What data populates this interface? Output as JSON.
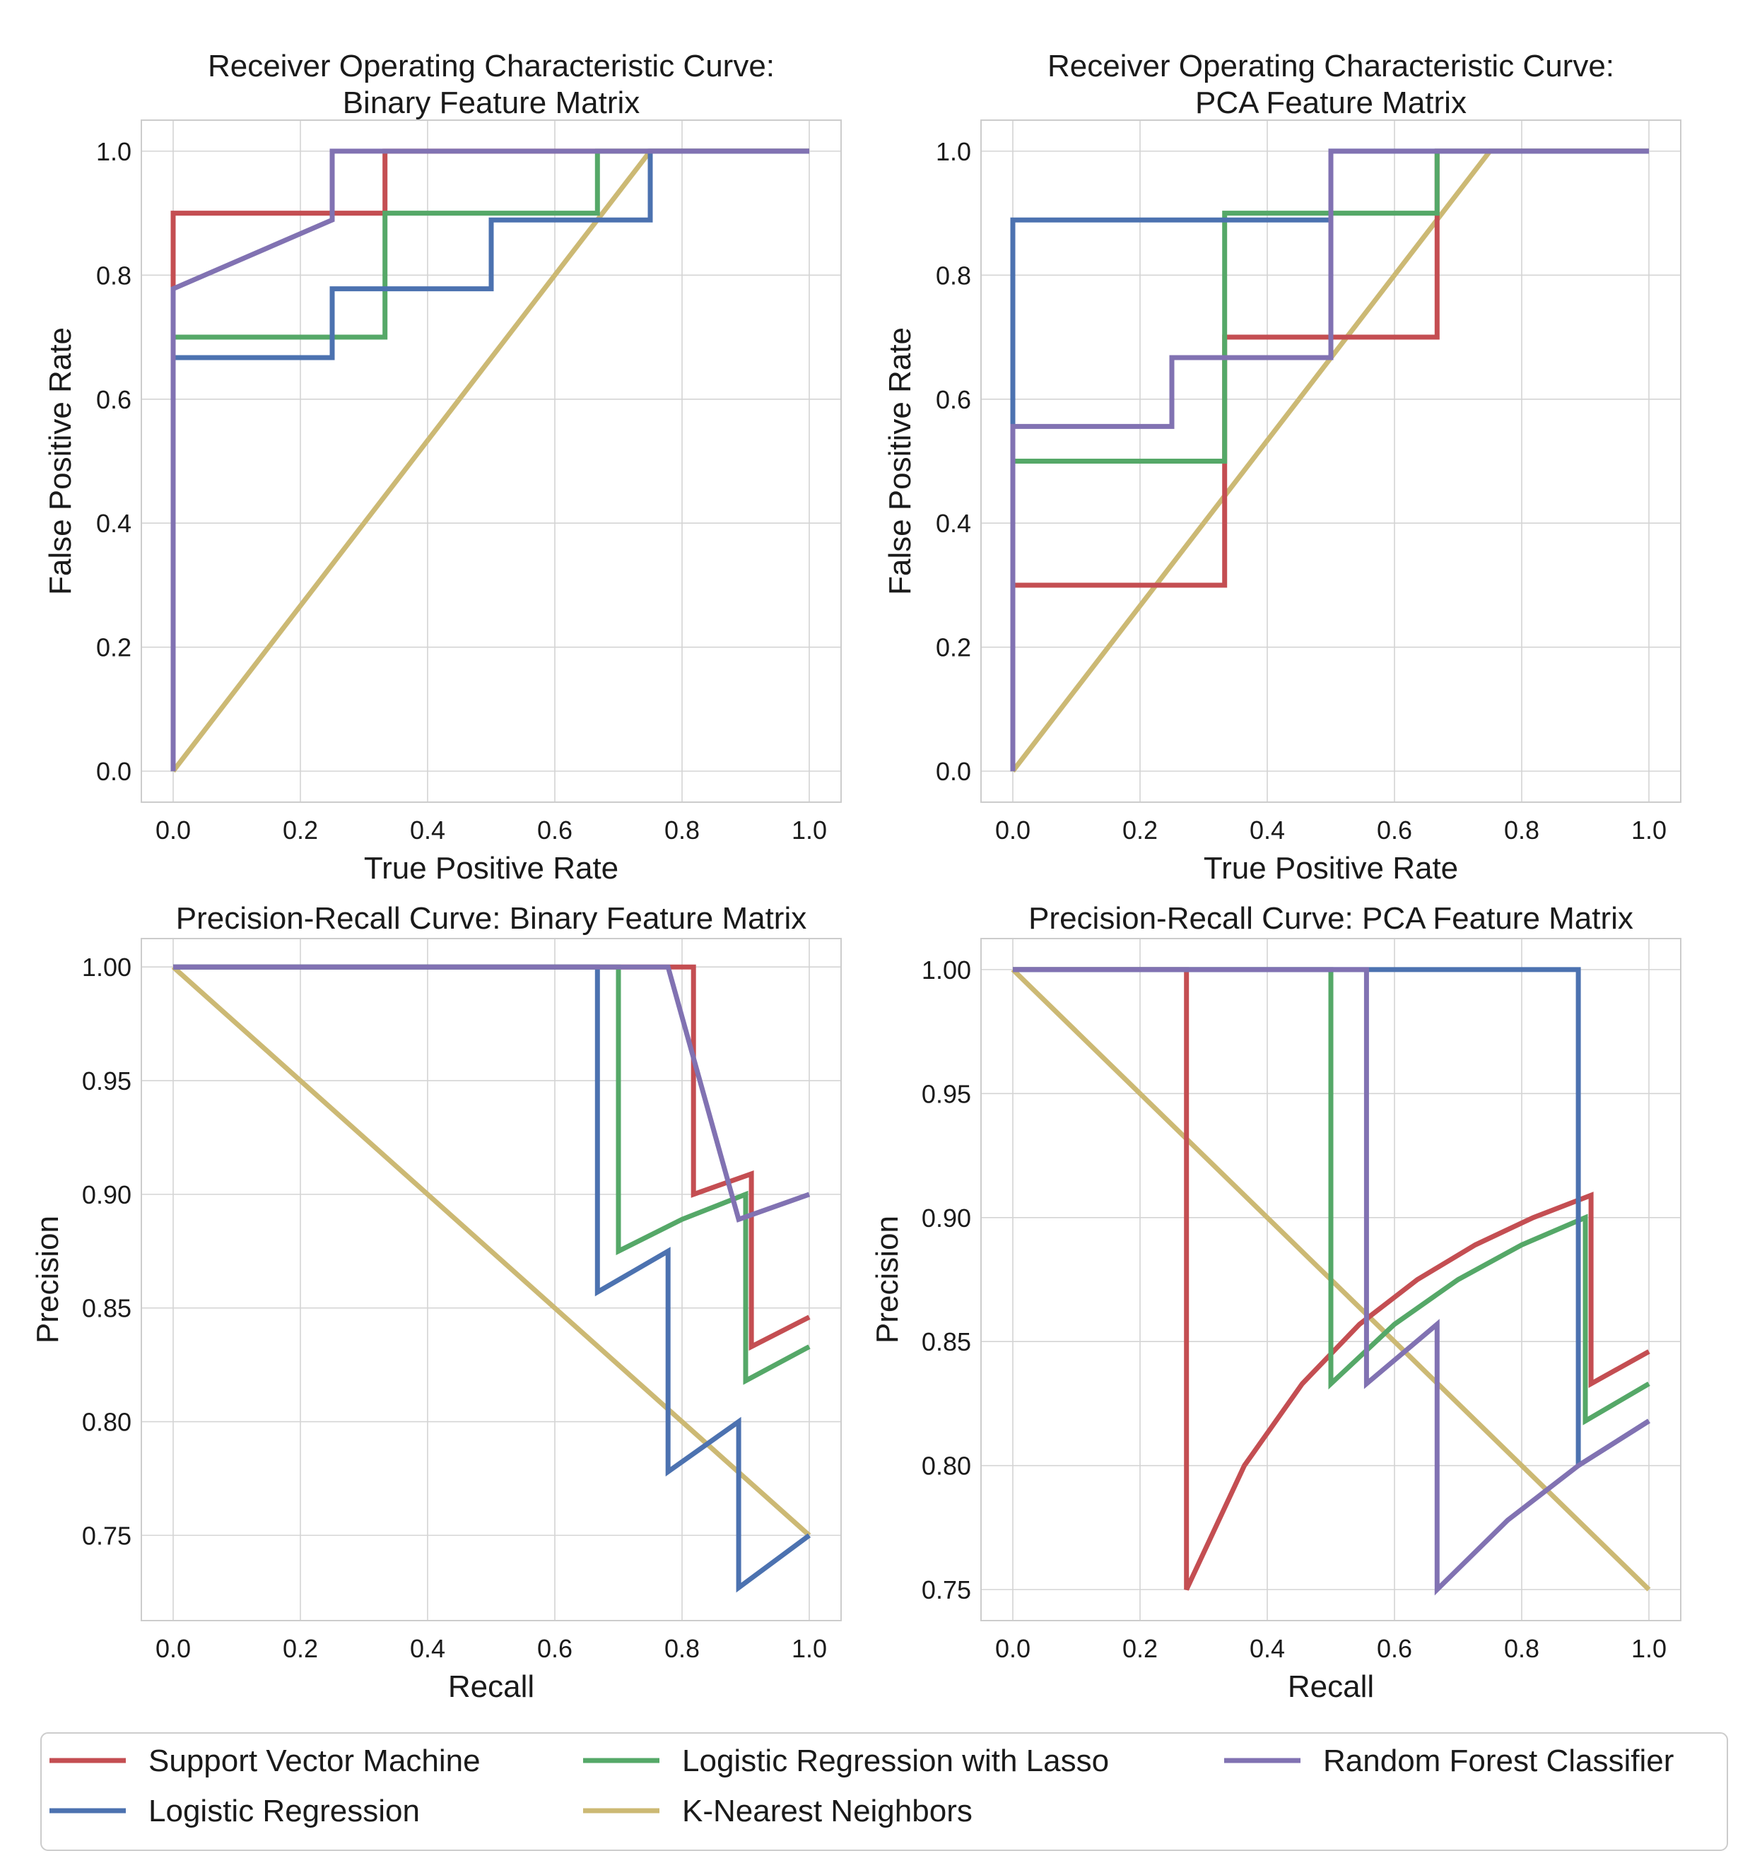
{
  "chart_data": [
    {
      "type": "line",
      "title": [
        "Receiver Operating Characteristic Curve:",
        "Binary Feature Matrix"
      ],
      "xlabel": "True Positive Rate",
      "ylabel": "False Positive Rate",
      "xlim": [
        -0.05,
        1.05
      ],
      "ylim": [
        -0.05,
        1.05
      ],
      "xticks": [
        0.0,
        0.2,
        0.4,
        0.6,
        0.8,
        1.0
      ],
      "yticks": [
        0.0,
        0.2,
        0.4,
        0.6,
        0.8,
        1.0
      ],
      "tick_decimals": 1,
      "series": [
        {
          "name": "Support Vector Machine",
          "x": [
            0,
            0,
            0.333,
            0.333,
            1
          ],
          "y": [
            0,
            0.9,
            0.9,
            1,
            1
          ]
        },
        {
          "name": "Logistic Regression",
          "x": [
            0,
            0,
            0.25,
            0.25,
            0.5,
            0.5,
            0.75,
            0.75,
            1
          ],
          "y": [
            0,
            0.667,
            0.667,
            0.778,
            0.778,
            0.889,
            0.889,
            1,
            1
          ]
        },
        {
          "name": "Logistic Regression with Lasso",
          "x": [
            0,
            0,
            0.333,
            0.333,
            0.667,
            0.667,
            1
          ],
          "y": [
            0,
            0.7,
            0.7,
            0.9,
            0.9,
            1,
            1
          ]
        },
        {
          "name": "K-Nearest Neighbors",
          "x": [
            0,
            0.75,
            1
          ],
          "y": [
            0,
            1,
            1
          ]
        },
        {
          "name": "Random Forest Classifier",
          "x": [
            0,
            0,
            0.25,
            0.25,
            1
          ],
          "y": [
            0,
            0.778,
            0.889,
            1,
            1
          ]
        }
      ]
    },
    {
      "type": "line",
      "title": [
        "Receiver Operating Characteristic Curve:",
        "PCA Feature Matrix"
      ],
      "xlabel": "True Positive Rate",
      "ylabel": "False Positive Rate",
      "xlim": [
        -0.05,
        1.05
      ],
      "ylim": [
        -0.05,
        1.05
      ],
      "xticks": [
        0.0,
        0.2,
        0.4,
        0.6,
        0.8,
        1.0
      ],
      "yticks": [
        0.0,
        0.2,
        0.4,
        0.6,
        0.8,
        1.0
      ],
      "tick_decimals": 1,
      "series": [
        {
          "name": "Support Vector Machine",
          "x": [
            0,
            0,
            0.333,
            0.333,
            0.667,
            0.667,
            1
          ],
          "y": [
            0,
            0.3,
            0.3,
            0.7,
            0.7,
            1,
            1
          ]
        },
        {
          "name": "Logistic Regression",
          "x": [
            0,
            0,
            0.5,
            0.5,
            1
          ],
          "y": [
            0,
            0.889,
            0.889,
            1,
            1
          ]
        },
        {
          "name": "Logistic Regression with Lasso",
          "x": [
            0,
            0,
            0.333,
            0.333,
            0.667,
            0.667,
            1
          ],
          "y": [
            0,
            0.5,
            0.5,
            0.9,
            0.9,
            1,
            1
          ]
        },
        {
          "name": "K-Nearest Neighbors",
          "x": [
            0,
            0.75,
            1
          ],
          "y": [
            0,
            1,
            1
          ]
        },
        {
          "name": "Random Forest Classifier",
          "x": [
            0,
            0,
            0.25,
            0.25,
            0.5,
            0.5,
            1
          ],
          "y": [
            0,
            0.556,
            0.556,
            0.667,
            0.667,
            1,
            1
          ]
        }
      ]
    },
    {
      "type": "line",
      "title": [
        "Precision-Recall Curve: Binary Feature Matrix"
      ],
      "xlabel": "Recall",
      "ylabel": "Precision",
      "xlim": [
        -0.05,
        1.05
      ],
      "ylim": [
        0.7125,
        1.0125
      ],
      "xticks": [
        0.0,
        0.2,
        0.4,
        0.6,
        0.8,
        1.0
      ],
      "yticks": [
        0.75,
        0.8,
        0.85,
        0.9,
        0.95,
        1.0
      ],
      "tick_decimals": 2,
      "series": [
        {
          "name": "Support Vector Machine",
          "x": [
            0,
            0.818,
            0.818,
            0.909,
            0.909,
            1.0
          ],
          "y": [
            1.0,
            1.0,
            0.9,
            0.909,
            0.833,
            0.846
          ]
        },
        {
          "name": "Logistic Regression",
          "x": [
            0,
            0.667,
            0.667,
            0.778,
            0.778,
            0.889,
            0.889,
            1.0
          ],
          "y": [
            1.0,
            1.0,
            0.857,
            0.875,
            0.778,
            0.8,
            0.727,
            0.75
          ]
        },
        {
          "name": "Logistic Regression with Lasso",
          "x": [
            0,
            0.7,
            0.7,
            0.8,
            0.9,
            0.9,
            1.0
          ],
          "y": [
            1.0,
            1.0,
            0.875,
            0.889,
            0.9,
            0.818,
            0.833
          ]
        },
        {
          "name": "K-Nearest Neighbors",
          "x": [
            0,
            1.0
          ],
          "y": [
            1.0,
            0.75
          ]
        },
        {
          "name": "Random Forest Classifier",
          "x": [
            0,
            0.778,
            0.889,
            1.0
          ],
          "y": [
            1.0,
            1.0,
            0.889,
            0.9
          ]
        }
      ]
    },
    {
      "type": "line",
      "title": [
        "Precision-Recall Curve: PCA Feature Matrix"
      ],
      "xlabel": "Recall",
      "ylabel": "Precision",
      "xlim": [
        -0.05,
        1.05
      ],
      "ylim": [
        0.7375,
        1.0125
      ],
      "xticks": [
        0.0,
        0.2,
        0.4,
        0.6,
        0.8,
        1.0
      ],
      "yticks": [
        0.75,
        0.8,
        0.85,
        0.9,
        0.95,
        1.0
      ],
      "tick_decimals": 2,
      "series": [
        {
          "name": "Support Vector Machine",
          "x": [
            0,
            0.273,
            0.273,
            0.364,
            0.455,
            0.545,
            0.636,
            0.727,
            0.818,
            0.909,
            0.909,
            1.0
          ],
          "y": [
            1.0,
            1.0,
            0.75,
            0.8,
            0.833,
            0.857,
            0.875,
            0.889,
            0.9,
            0.909,
            0.833,
            0.846
          ]
        },
        {
          "name": "Logistic Regression",
          "x": [
            0,
            0.889,
            0.889,
            1.0
          ],
          "y": [
            1.0,
            1.0,
            0.8,
            0.818
          ]
        },
        {
          "name": "Logistic Regression with Lasso",
          "x": [
            0,
            0.5,
            0.5,
            0.6,
            0.7,
            0.8,
            0.9,
            0.9,
            1.0
          ],
          "y": [
            1.0,
            1.0,
            0.833,
            0.857,
            0.875,
            0.889,
            0.9,
            0.818,
            0.833
          ]
        },
        {
          "name": "K-Nearest Neighbors",
          "x": [
            0,
            1.0
          ],
          "y": [
            1.0,
            0.75
          ]
        },
        {
          "name": "Random Forest Classifier",
          "x": [
            0,
            0.556,
            0.556,
            0.667,
            0.667,
            0.778,
            0.889,
            1.0
          ],
          "y": [
            1.0,
            1.0,
            0.833,
            0.857,
            0.75,
            0.778,
            0.8,
            0.818
          ]
        }
      ]
    }
  ],
  "legend": {
    "placement": "bottom",
    "items": [
      {
        "name": "Support Vector Machine",
        "color": "#c44e52"
      },
      {
        "name": "Logistic Regression",
        "color": "#4c72b0"
      },
      {
        "name": "Logistic Regression with Lasso",
        "color": "#55a868"
      },
      {
        "name": "K-Nearest Neighbors",
        "color": "#ccb974"
      },
      {
        "name": "Random Forest Classifier",
        "color": "#8172b2"
      }
    ]
  }
}
